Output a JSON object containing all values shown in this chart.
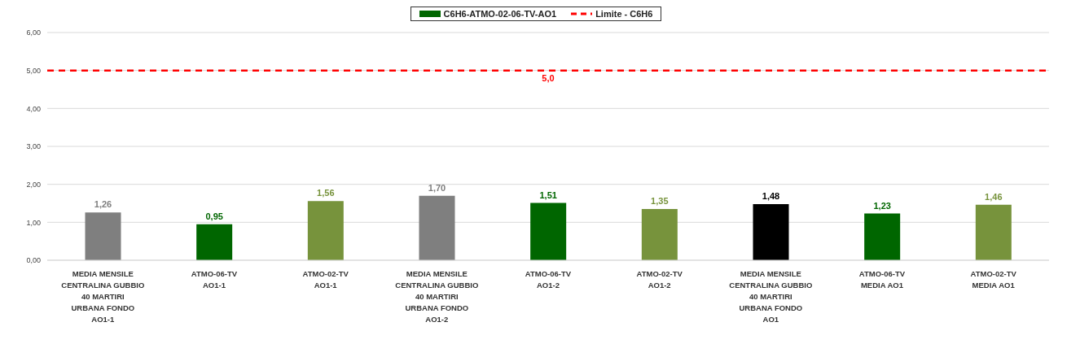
{
  "chart_data": {
    "type": "bar",
    "categories": [
      "MEDIA MENSILE\nCENTRALINA GUBBIO\n40 MARTIRI\nURBANA FONDO\nAO1-1",
      "ATMO-06-TV\nAO1-1",
      "ATMO-02-TV\nAO1-1",
      "MEDIA MENSILE\nCENTRALINA GUBBIO\n40 MARTIRI\nURBANA FONDO\nAO1-2",
      "ATMO-06-TV\nAO1-2",
      "ATMO-02-TV\nAO1-2",
      "MEDIA MENSILE\nCENTRALINA GUBBIO\n40 MARTIRI\nURBANA FONDO\nAO1",
      "ATMO-06-TV\nMEDIA AO1",
      "ATMO-02-TV\nMEDIA AO1"
    ],
    "series": [
      {
        "name": "C6H6-ATMO-02-06-TV-AO1",
        "color": "#006600",
        "values": [
          1.26,
          0.95,
          1.56,
          1.7,
          1.51,
          1.35,
          1.48,
          1.23,
          1.46
        ],
        "colors": [
          "#7f7f7f",
          "#006600",
          "#77933c",
          "#7f7f7f",
          "#006600",
          "#77933c",
          "#000000",
          "#006600",
          "#77933c"
        ],
        "value_labels": [
          "1,26",
          "0,95",
          "1,56",
          "1,70",
          "1,51",
          "1,35",
          "1,48",
          "1,23",
          "1,46"
        ]
      }
    ],
    "ylim": [
      0,
      6
    ],
    "yticks": [
      {
        "value": 0,
        "label": "0,00"
      },
      {
        "value": 1,
        "label": "1,00"
      },
      {
        "value": 2,
        "label": "2,00"
      },
      {
        "value": 3,
        "label": "3,00"
      },
      {
        "value": 4,
        "label": "4,00"
      },
      {
        "value": 5,
        "label": "5,00"
      },
      {
        "value": 6,
        "label": "6,00"
      }
    ],
    "grid": "y",
    "legend": "top",
    "ref_lines": [
      {
        "axis": "y",
        "value": 5,
        "label": "Limite - C6H6",
        "color": "#ff0000",
        "line_style": "dashed"
      }
    ],
    "annotations": [
      {
        "text": "5,0",
        "y": 5
      }
    ]
  }
}
